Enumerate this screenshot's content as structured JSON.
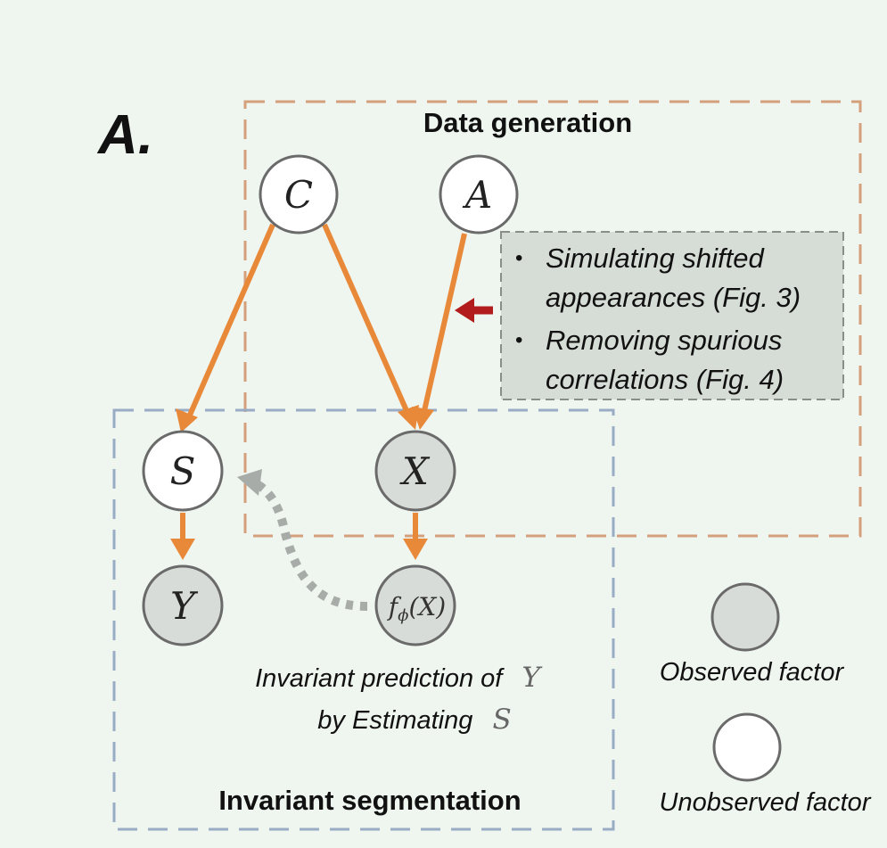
{
  "panel_label": "A.",
  "data_generation": {
    "title": "Data generation"
  },
  "invariant_segmentation": {
    "title": "Invariant segmentation"
  },
  "nodes": {
    "C": {
      "label": "C",
      "observed": false
    },
    "A": {
      "label": "A",
      "observed": false
    },
    "S": {
      "label": "S",
      "observed": false
    },
    "X": {
      "label": "X",
      "observed": true
    },
    "Y": {
      "label": "Y",
      "observed": true
    },
    "F": {
      "label": "f",
      "sub": "ϕ",
      "arg": "(X)",
      "observed": true
    }
  },
  "callout": {
    "items": [
      {
        "line1": "Simulating shifted",
        "line2": "appearances (Fig. 3)"
      },
      {
        "line1": "Removing spurious",
        "line2": "correlations (Fig. 4)"
      }
    ]
  },
  "caption": {
    "line1_text": "Invariant prediction of",
    "line1_symbol": "Y",
    "line2_text": "by Estimating",
    "line2_symbol": "S"
  },
  "legend": {
    "observed_label": "Observed factor",
    "unobserved_label": "Unobserved factor"
  },
  "colors": {
    "edge": "#e8893a",
    "data_box": "#d4a07c",
    "seg_box": "#9aabc4",
    "observed_fill": "#d8dcd8",
    "unobserved_fill": "#ffffff",
    "node_stroke": "#6a6a6a",
    "red_arrow": "#b31c1c",
    "dotted_arrow": "#a8aca8",
    "callout_fill": "#d6dcd6"
  }
}
